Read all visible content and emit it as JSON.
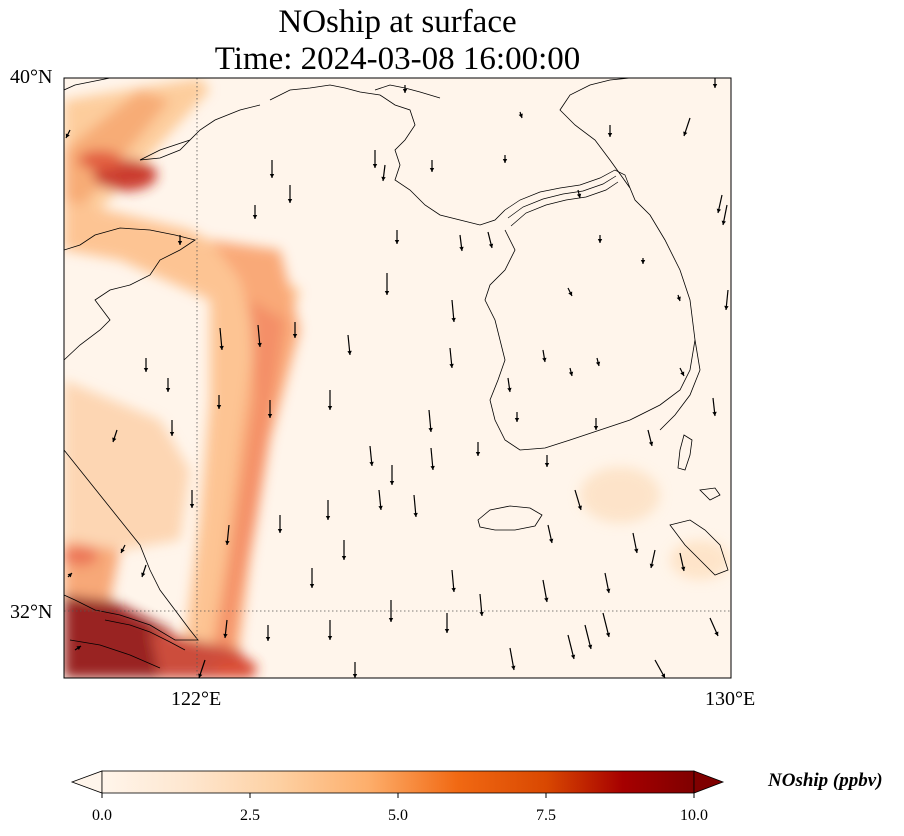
{
  "title": {
    "line1": "NOship at surface",
    "line2": "Time: 2024-03-08 16:00:00"
  },
  "axes": {
    "lat_labels": [
      "40°N",
      "32°N"
    ],
    "lon_labels": [
      "122°E",
      "130°E"
    ],
    "lat_range": [
      31,
      40
    ],
    "lon_range": [
      120,
      130
    ],
    "gridlines": {
      "lat": [
        32
      ],
      "lon": [
        122
      ],
      "style": "dotted"
    }
  },
  "colorbar": {
    "label": "NOship (ppbv)",
    "ticks": [
      "0.0",
      "2.5",
      "5.0",
      "7.5",
      "10.0"
    ],
    "range": [
      0,
      10
    ],
    "colormap": "OrRd",
    "extend": "both"
  },
  "colors": {
    "background_low": "#fff5eb",
    "mid": "#fdae6b",
    "high": "#7f0000"
  }
}
